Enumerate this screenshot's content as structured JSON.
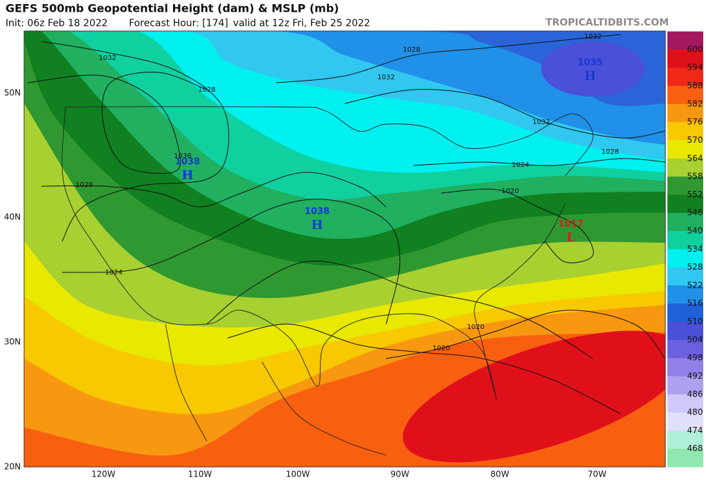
{
  "header": {
    "title": "GEFS 500mb Geopotential Height (dam) & MSLP (mb)",
    "init": "Init: 06z Feb 18 2022",
    "forecast_hour": "Forecast Hour: [174]",
    "valid": "valid at 12z Fri, Feb 25 2022",
    "site": "TROPICALTIDBITS.COM"
  },
  "colorbar": {
    "labels": [
      600,
      594,
      588,
      582,
      576,
      570,
      564,
      558,
      552,
      546,
      540,
      534,
      528,
      522,
      516,
      510,
      504,
      498,
      492,
      486,
      480,
      474,
      468
    ]
  },
  "map": {
    "latitude_labels": [
      "50N",
      "40N",
      "30N",
      "20N"
    ],
    "longitude_labels": [
      "120W",
      "110W",
      "100W",
      "90W",
      "80W",
      "70W"
    ],
    "pressure_labels": [
      "1032",
      "1028",
      "1036",
      "1028",
      "1024",
      "1028",
      "1032",
      "1032",
      "1032",
      "1028",
      "1024",
      "1020",
      "1020",
      "1020"
    ],
    "centers": [
      {
        "value": "1038",
        "letter": "H"
      },
      {
        "value": "1038",
        "letter": "H"
      },
      {
        "value": "1035",
        "letter": "H"
      },
      {
        "value": "1017",
        "letter": "L"
      }
    ]
  }
}
